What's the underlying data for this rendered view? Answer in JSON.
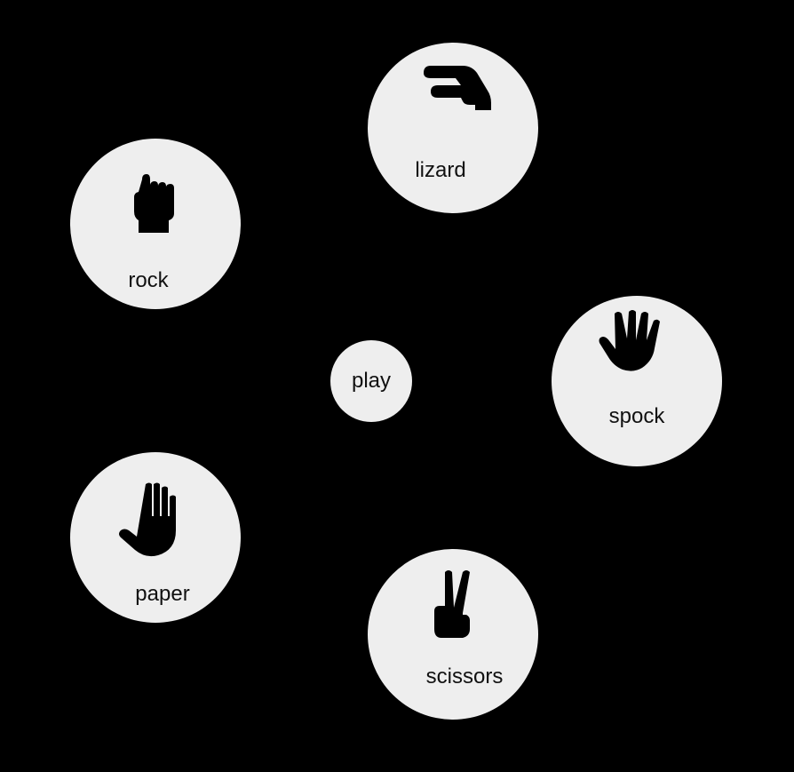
{
  "play": {
    "label": "play"
  },
  "choices": [
    {
      "id": "rock",
      "label": "rock",
      "icon": "fist-icon"
    },
    {
      "id": "lizard",
      "label": "lizard",
      "icon": "lizard-hand-icon"
    },
    {
      "id": "spock",
      "label": "spock",
      "icon": "vulcan-salute-icon"
    },
    {
      "id": "paper",
      "label": "paper",
      "icon": "open-hand-icon"
    },
    {
      "id": "scissors",
      "label": "scissors",
      "icon": "victory-hand-icon"
    }
  ],
  "colors": {
    "background": "#000000",
    "circle": "#eeeeee",
    "icon": "#000000",
    "text": "#111111"
  }
}
